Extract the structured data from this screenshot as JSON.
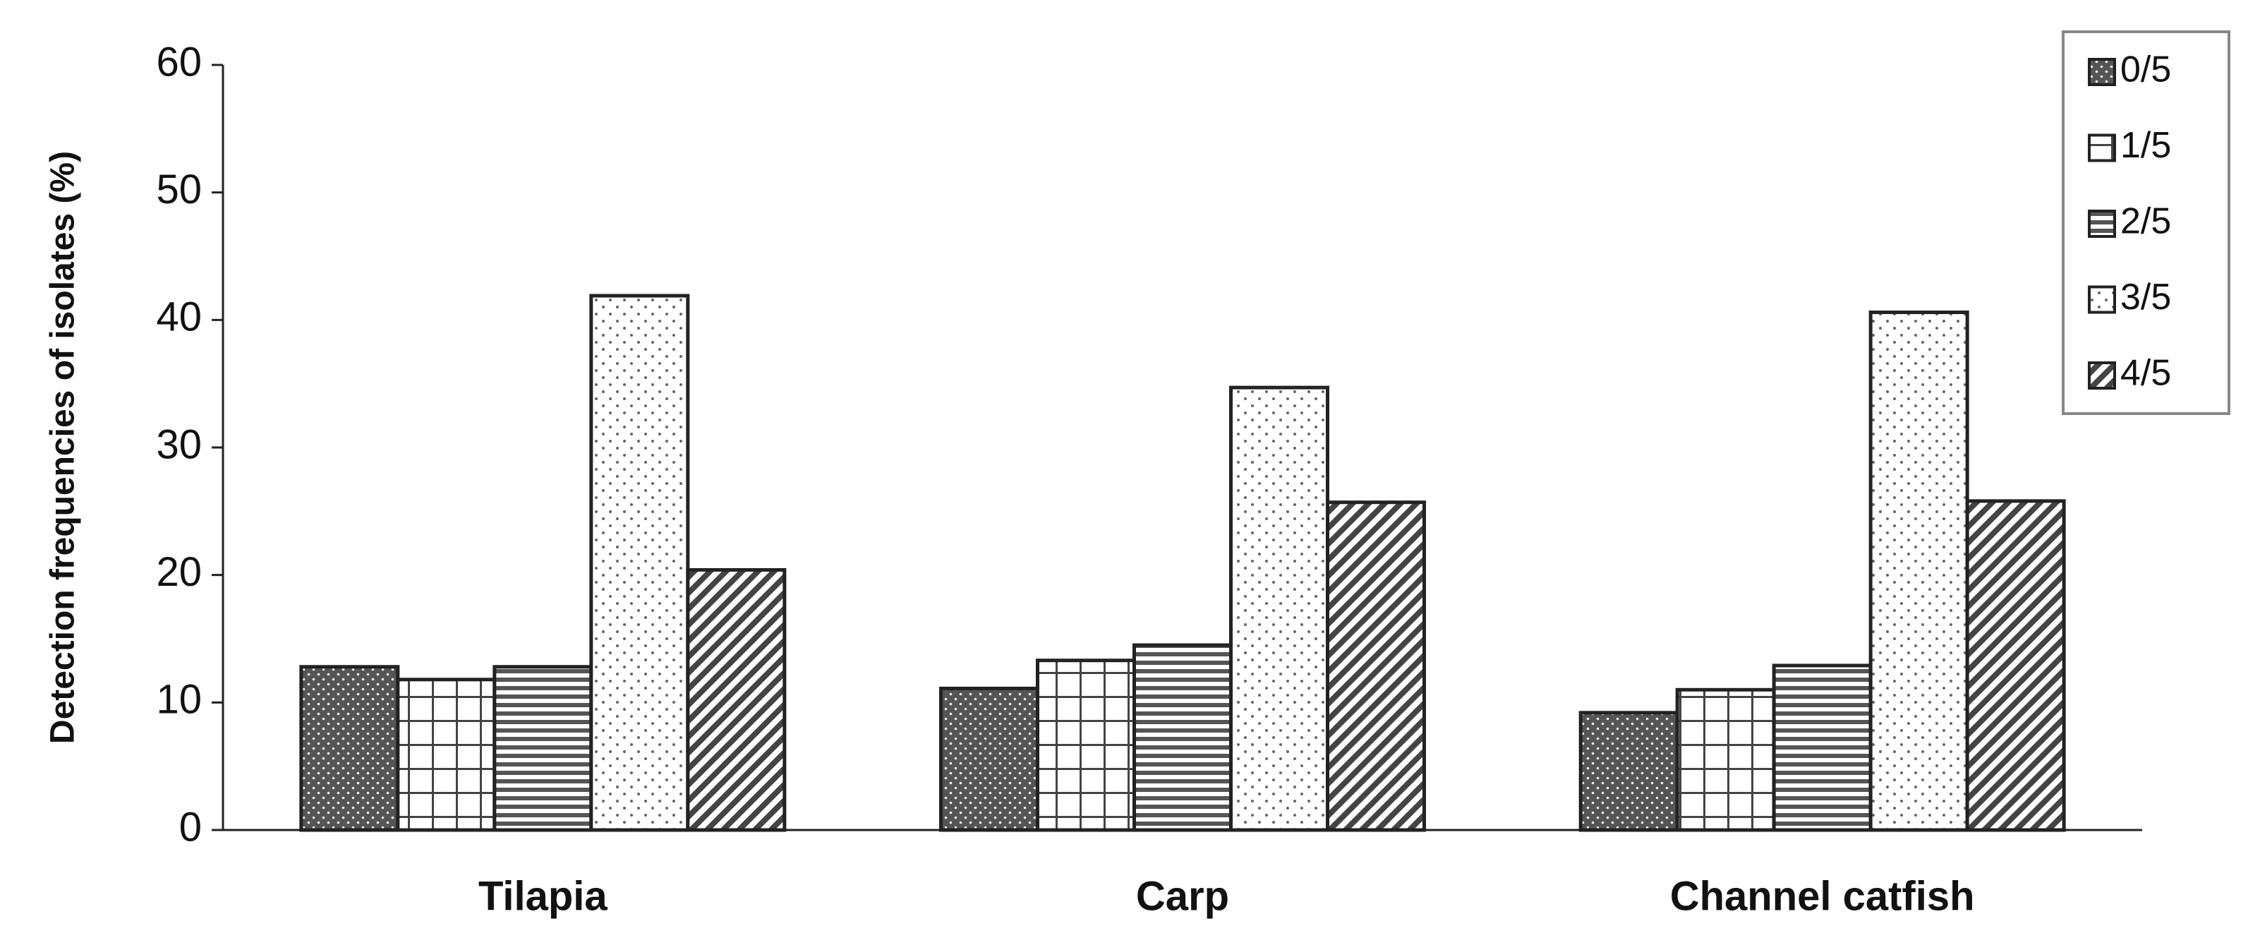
{
  "chart_data": {
    "type": "bar",
    "y_label": "Detection frequencies of isolates (%)",
    "categories": [
      "Tilapia",
      "Carp",
      "Channel catfish"
    ],
    "series": [
      {
        "name": "0/5",
        "pattern": "dense-dots",
        "values": [
          12.8,
          11.1,
          9.2
        ]
      },
      {
        "name": "1/5",
        "pattern": "grid",
        "values": [
          11.8,
          13.3,
          11.0
        ]
      },
      {
        "name": "2/5",
        "pattern": "horizontal-lines",
        "values": [
          12.8,
          14.5,
          12.9
        ]
      },
      {
        "name": "3/5",
        "pattern": "sparse-dots",
        "values": [
          41.9,
          34.7,
          40.6
        ]
      },
      {
        "name": "4/5",
        "pattern": "diagonal-lines",
        "values": [
          20.4,
          25.7,
          25.8
        ]
      }
    ],
    "ylim": [
      0,
      60
    ],
    "yticks": [
      0,
      10,
      20,
      30,
      40,
      50,
      60
    ],
    "grid": false,
    "legend": "top-right"
  }
}
